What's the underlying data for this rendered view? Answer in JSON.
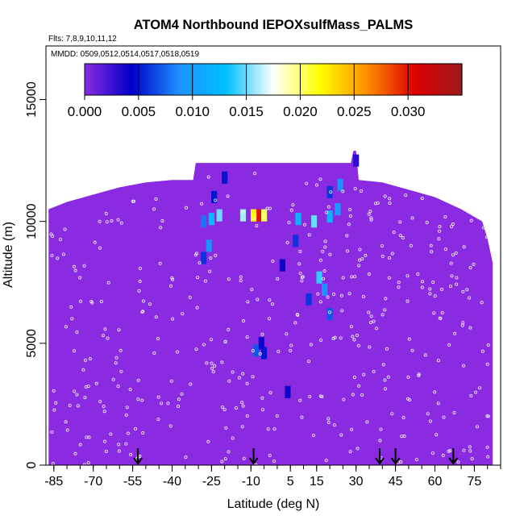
{
  "chart_data": {
    "type": "heatmap",
    "title": "ATOM4 Northbound IEPOXsulfMass_PALMS",
    "flights_note": "Flts: 7,8,9,10,11,12",
    "mmdd_note": "MMDD: 0509,0512,0514,0517,0518,0519",
    "xlabel": "Latitude (deg N)",
    "ylabel": "Altitude (m)",
    "xlim": [
      -88,
      85
    ],
    "ylim": [
      0,
      17200
    ],
    "x_ticks": [
      -85,
      -70,
      -55,
      -40,
      -25,
      -10,
      5,
      15,
      30,
      45,
      60,
      75
    ],
    "y_ticks": [
      0,
      5000,
      10000,
      15000
    ],
    "colorbar": {
      "min": 0.0,
      "max": 0.035,
      "ticks": [
        0.0,
        0.005,
        0.01,
        0.015,
        0.02,
        0.025,
        0.03
      ],
      "tick_labels": [
        "0.000",
        "0.005",
        "0.010",
        "0.015",
        "0.020",
        "0.025",
        "0.030"
      ],
      "colors": [
        "#8a2be2",
        "#0000c8",
        "#1e90ff",
        "#00bfff",
        "#ffffff",
        "#ffff00",
        "#ff8c00",
        "#dd0000",
        "#9b1a1a"
      ]
    },
    "background_value": 0.0,
    "coverage_profile": [
      {
        "lat": -87,
        "top": 10500
      },
      {
        "lat": -80,
        "top": 10800
      },
      {
        "lat": -70,
        "top": 11100
      },
      {
        "lat": -60,
        "top": 11400
      },
      {
        "lat": -50,
        "top": 11600
      },
      {
        "lat": -40,
        "top": 11700
      },
      {
        "lat": -32,
        "top": 11700
      },
      {
        "lat": -31,
        "top": 12400
      },
      {
        "lat": 28,
        "top": 12400
      },
      {
        "lat": 29,
        "top": 12900
      },
      {
        "lat": 30,
        "top": 12900
      },
      {
        "lat": 31,
        "top": 11700
      },
      {
        "lat": 40,
        "top": 11600
      },
      {
        "lat": 50,
        "top": 11300
      },
      {
        "lat": 60,
        "top": 11000
      },
      {
        "lat": 70,
        "top": 10500
      },
      {
        "lat": 78,
        "top": 10000
      },
      {
        "lat": 80,
        "top": 9300
      },
      {
        "lat": 82,
        "top": 8300
      }
    ],
    "features": [
      {
        "lat": -7,
        "alt": 10250,
        "value": 0.03
      },
      {
        "lat": -9,
        "alt": 10250,
        "value": 0.022
      },
      {
        "lat": -13,
        "alt": 10250,
        "value": 0.016
      },
      {
        "lat": -5,
        "alt": 10250,
        "value": 0.02
      },
      {
        "lat": -22,
        "alt": 10250,
        "value": 0.015
      },
      {
        "lat": -25,
        "alt": 10100,
        "value": 0.013
      },
      {
        "lat": -28,
        "alt": 10000,
        "value": 0.008
      },
      {
        "lat": -26,
        "alt": 9000,
        "value": 0.009
      },
      {
        "lat": -28,
        "alt": 8500,
        "value": 0.006
      },
      {
        "lat": -24,
        "alt": 11000,
        "value": 0.005
      },
      {
        "lat": -20,
        "alt": 11800,
        "value": 0.005
      },
      {
        "lat": 8,
        "alt": 10100,
        "value": 0.012
      },
      {
        "lat": 14,
        "alt": 10000,
        "value": 0.015
      },
      {
        "lat": 20,
        "alt": 10200,
        "value": 0.012
      },
      {
        "lat": 23,
        "alt": 10500,
        "value": 0.01
      },
      {
        "lat": 24,
        "alt": 11500,
        "value": 0.009
      },
      {
        "lat": 20,
        "alt": 11200,
        "value": 0.006
      },
      {
        "lat": 7,
        "alt": 9200,
        "value": 0.006
      },
      {
        "lat": 16,
        "alt": 7700,
        "value": 0.014
      },
      {
        "lat": 18,
        "alt": 7200,
        "value": 0.009
      },
      {
        "lat": 12,
        "alt": 6800,
        "value": 0.006
      },
      {
        "lat": 20,
        "alt": 6200,
        "value": 0.007
      },
      {
        "lat": -8,
        "alt": 4700,
        "value": 0.007
      },
      {
        "lat": -5,
        "alt": 4600,
        "value": 0.005
      },
      {
        "lat": -6,
        "alt": 5000,
        "value": 0.004
      },
      {
        "lat": 4,
        "alt": 3000,
        "value": 0.004
      },
      {
        "lat": 2,
        "alt": 8200,
        "value": 0.004
      },
      {
        "lat": 30,
        "alt": 12500,
        "value": 0.003
      }
    ],
    "highlight_lats": [
      -53,
      -9,
      39,
      45,
      67
    ]
  }
}
